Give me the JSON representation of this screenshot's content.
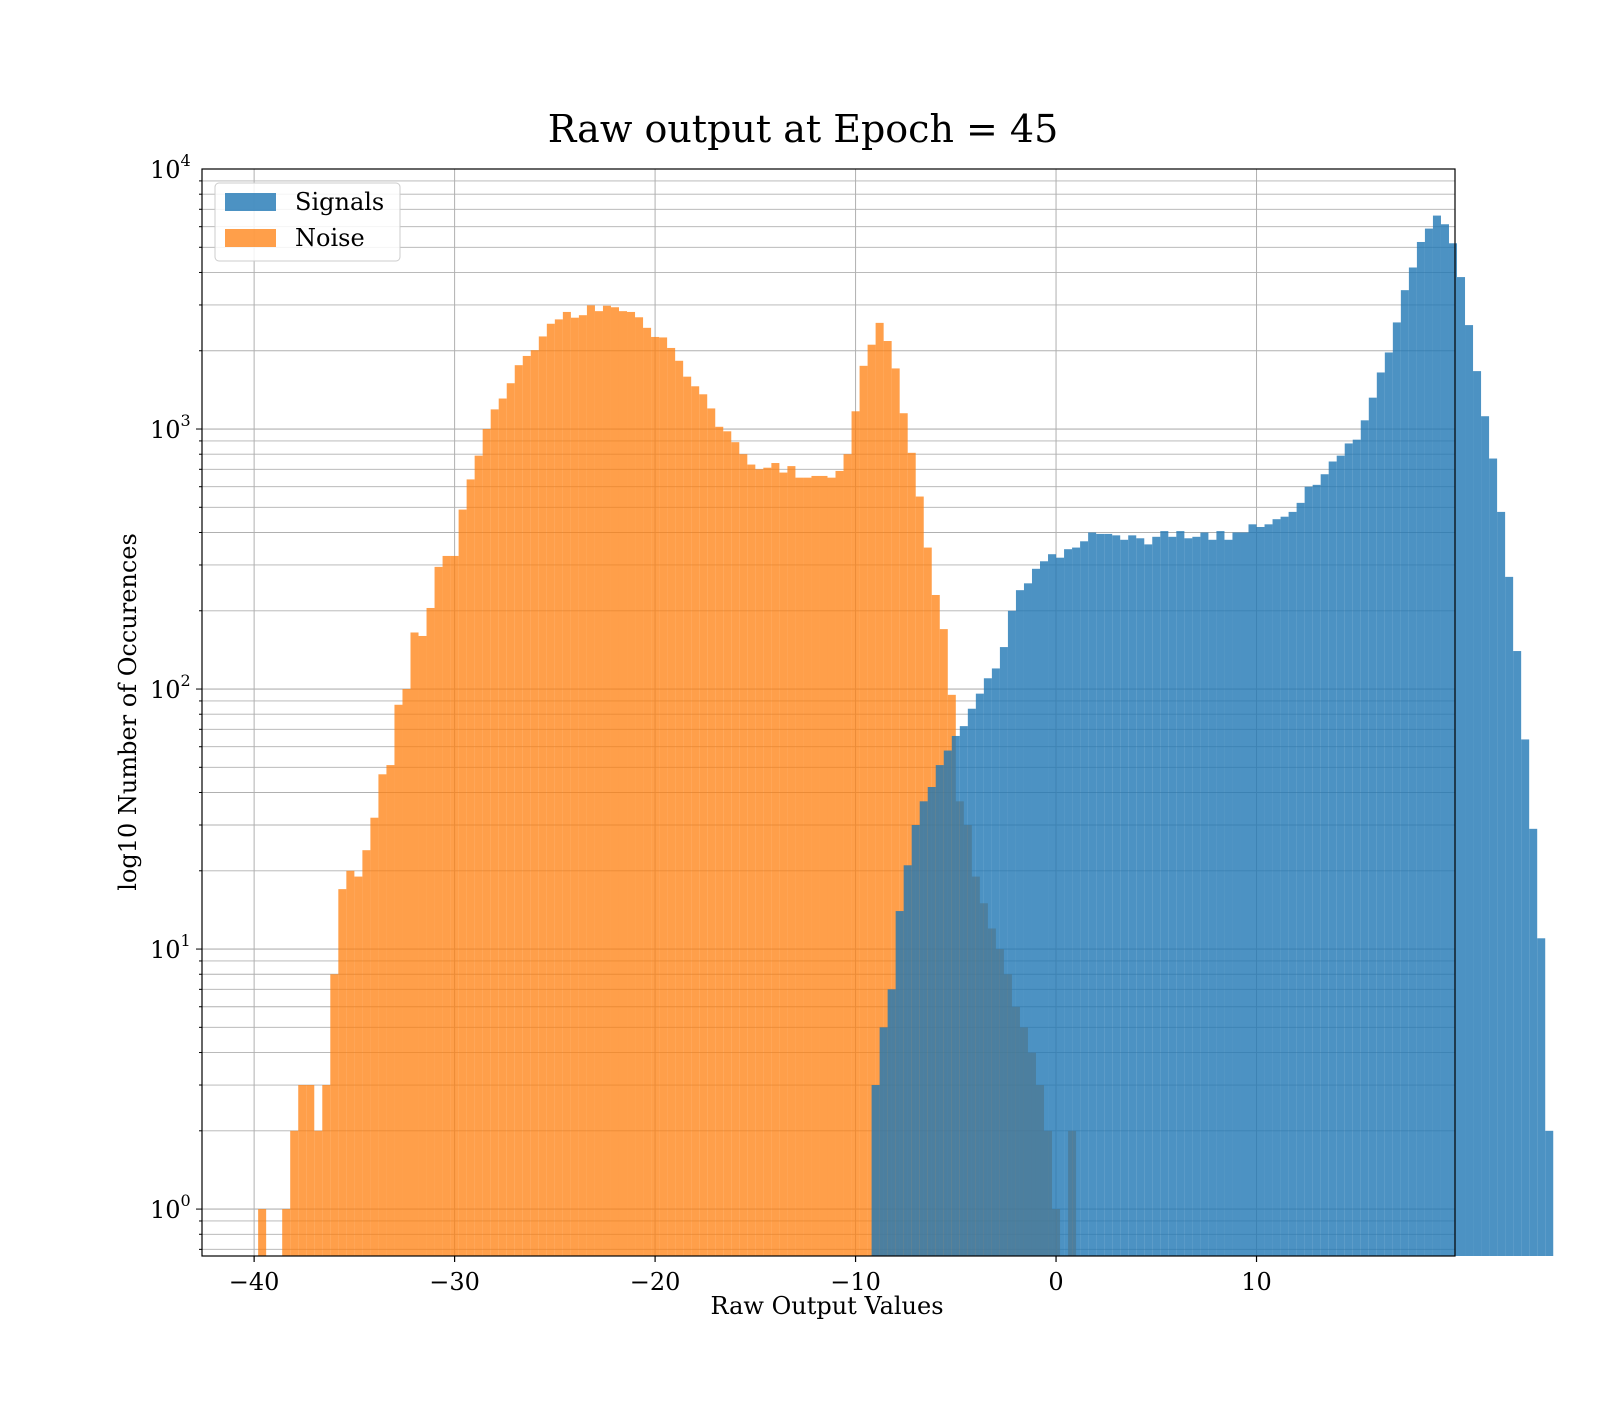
{
  "chart_data": {
    "type": "histogram",
    "title": "Raw output at Epoch = 45",
    "xlabel": "Raw Output Values",
    "ylabel": "log10 Number of Occurences",
    "yscale": "log",
    "xlim": [
      -42.6,
      19.9
    ],
    "ylim": [
      0.66,
      10000
    ],
    "grid": true,
    "legend_position": "top-left",
    "x_ticks": [
      -40,
      -30,
      -20,
      -10,
      0,
      10
    ],
    "x_tick_labels": [
      "−40",
      "−30",
      "−20",
      "−10",
      "0",
      "10"
    ],
    "y_ticks": [
      {
        "value": 1,
        "base": "10",
        "exp": "0"
      },
      {
        "value": 10,
        "base": "10",
        "exp": "1"
      },
      {
        "value": 100,
        "base": "10",
        "exp": "2"
      },
      {
        "value": 1000,
        "base": "10",
        "exp": "3"
      },
      {
        "value": 10000,
        "base": "10",
        "exp": "4"
      }
    ],
    "series": [
      {
        "name": "Noise",
        "color": "#ff7f0e",
        "opacity": 0.75,
        "bin_start": -39.8,
        "bin_width": 0.4,
        "counts": [
          1,
          0,
          0,
          1,
          2,
          3,
          3,
          2,
          3,
          8,
          17,
          20,
          19,
          24,
          32,
          47,
          51,
          87,
          100,
          165,
          160,
          205,
          295,
          325,
          325,
          490,
          640,
          790,
          1000,
          1190,
          1310,
          1500,
          1760,
          1910,
          2010,
          2270,
          2540,
          2640,
          2820,
          2680,
          2740,
          2990,
          2840,
          2980,
          2940,
          2840,
          2820,
          2690,
          2450,
          2260,
          2250,
          2050,
          1830,
          1590,
          1460,
          1360,
          1200,
          1020,
          980,
          890,
          800,
          730,
          700,
          710,
          740,
          680,
          720,
          650,
          650,
          660,
          660,
          650,
          690,
          800,
          1170,
          1750,
          2110,
          2560,
          2180,
          1710,
          1150,
          810,
          550,
          350,
          230,
          170,
          95,
          37,
          30,
          19,
          15,
          12,
          10,
          8,
          6,
          5,
          4,
          3,
          2,
          1,
          0,
          2
        ]
      },
      {
        "name": "Signals",
        "color": "#1f77b4",
        "opacity": 0.8,
        "bin_start": -9.2,
        "bin_width": 0.4,
        "counts": [
          3,
          5,
          7,
          14,
          21,
          30,
          37,
          42,
          51,
          58,
          66,
          72,
          84,
          96,
          110,
          120,
          145,
          200,
          240,
          255,
          290,
          310,
          330,
          320,
          345,
          350,
          370,
          400,
          395,
          395,
          390,
          375,
          390,
          380,
          360,
          385,
          405,
          385,
          405,
          380,
          385,
          400,
          375,
          405,
          375,
          400,
          400,
          430,
          420,
          430,
          450,
          460,
          480,
          520,
          600,
          610,
          670,
          750,
          790,
          880,
          910,
          1080,
          1320,
          1650,
          1970,
          2570,
          3420,
          4180,
          5240,
          5900,
          6620,
          6130,
          5180,
          3840,
          2510,
          1670,
          1120,
          770,
          480,
          270,
          140,
          64,
          29,
          11,
          2
        ]
      }
    ]
  }
}
